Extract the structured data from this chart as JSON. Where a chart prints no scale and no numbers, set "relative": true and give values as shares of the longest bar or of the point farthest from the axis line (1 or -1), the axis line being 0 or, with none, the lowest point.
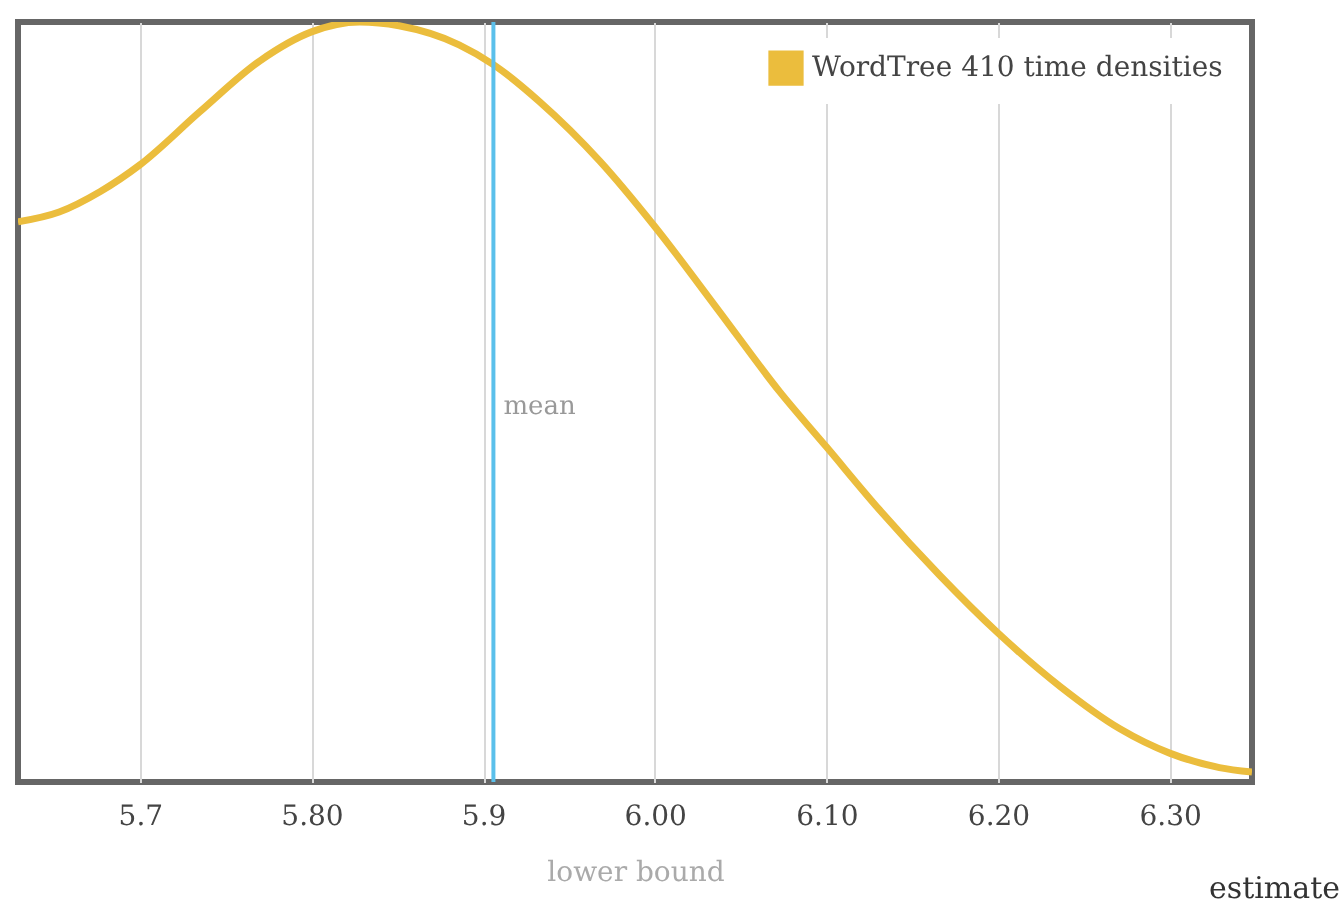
{
  "chart_data": {
    "type": "line",
    "relative": true,
    "xlabel": "lower bound",
    "annotations": [
      "estimate"
    ],
    "x": [
      5.629,
      5.653,
      5.677,
      5.7,
      5.735,
      5.77,
      5.8,
      5.828,
      5.851,
      5.886,
      5.906,
      5.933,
      5.968,
      6.0,
      6.037,
      6.073,
      6.1,
      6.131,
      6.166,
      6.2,
      6.236,
      6.271,
      6.3,
      6.329,
      6.348
    ],
    "series": [
      {
        "name": "WordTree 410 time densities",
        "color": "#ebbd3d",
        "values": [
          0.737,
          0.75,
          0.777,
          0.812,
          0.882,
          0.949,
          0.987,
          1,
          0.995,
          0.97,
          0.944,
          0.895,
          0.817,
          0.731,
          0.621,
          0.513,
          0.441,
          0.358,
          0.272,
          0.196,
          0.126,
          0.07,
          0.038,
          0.019,
          0.013
        ]
      }
    ],
    "xlim": [
      5.629,
      6.348
    ],
    "xticks": [
      {
        "value": 5.7,
        "label": "5.7"
      },
      {
        "value": 5.8,
        "label": "5.80"
      },
      {
        "value": 5.9,
        "label": "5.9"
      },
      {
        "value": 6.0,
        "label": "6.00"
      },
      {
        "value": 6.1,
        "label": "6.10"
      },
      {
        "value": 6.2,
        "label": "6.20"
      },
      {
        "value": 6.3,
        "label": "6.30"
      }
    ],
    "ref_lines": [
      {
        "axis": "x",
        "value": 5.906,
        "label": "mean",
        "color": "#5bc0eb"
      }
    ],
    "grid": "x",
    "legend": "top right"
  }
}
